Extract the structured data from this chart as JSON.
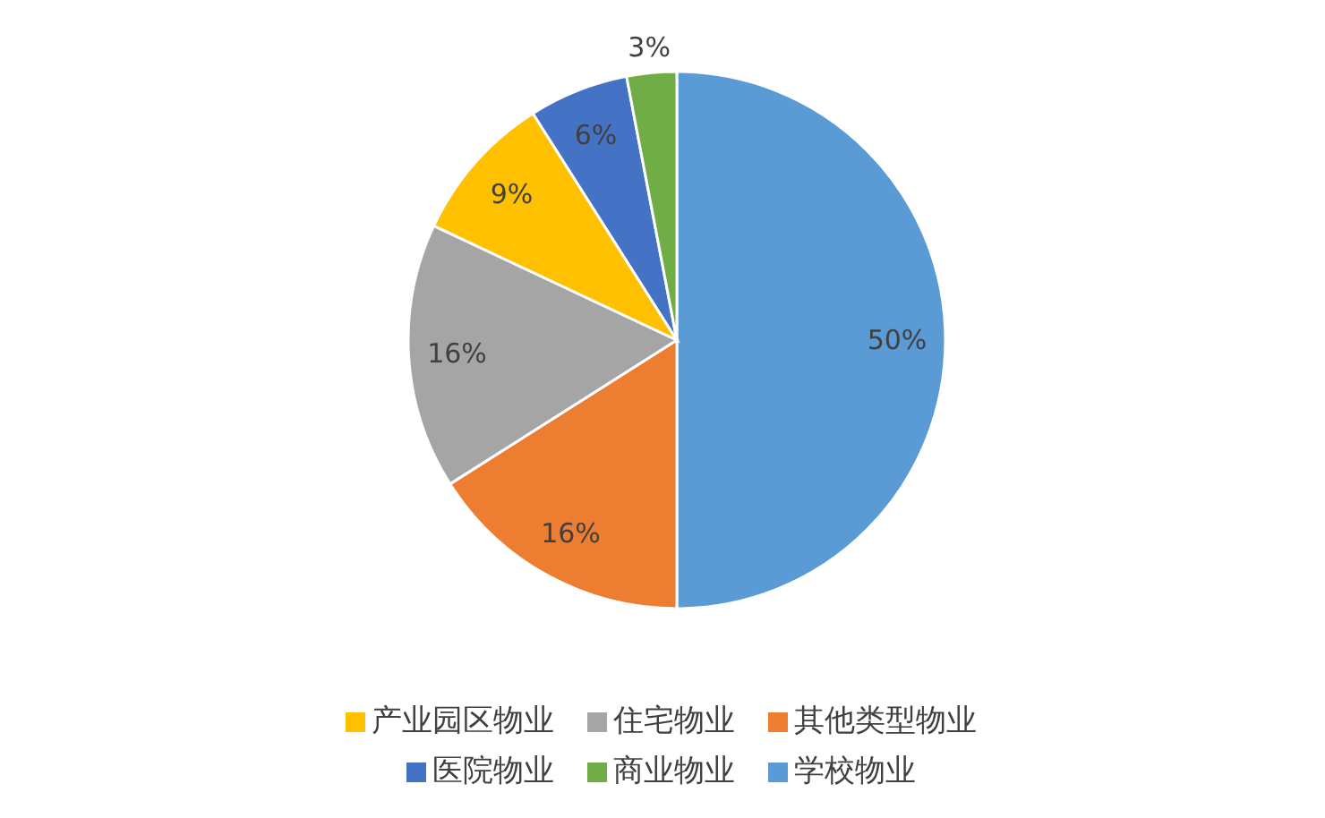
{
  "chart_data": {
    "type": "pie",
    "categories": [
      "学校物业",
      "其他类型物业",
      "住宅物业",
      "产业园区物业",
      "医院物业",
      "商业物业"
    ],
    "values": [
      50,
      16,
      16,
      9,
      6,
      3
    ],
    "colors": [
      "#5b9bd5",
      "#ed7d31",
      "#a5a5a5",
      "#ffc000",
      "#4472c4",
      "#70ad47"
    ],
    "value_labels": [
      "50%",
      "16%",
      "16%",
      "9%",
      "6%",
      "3%"
    ],
    "legend": "bottom"
  }
}
